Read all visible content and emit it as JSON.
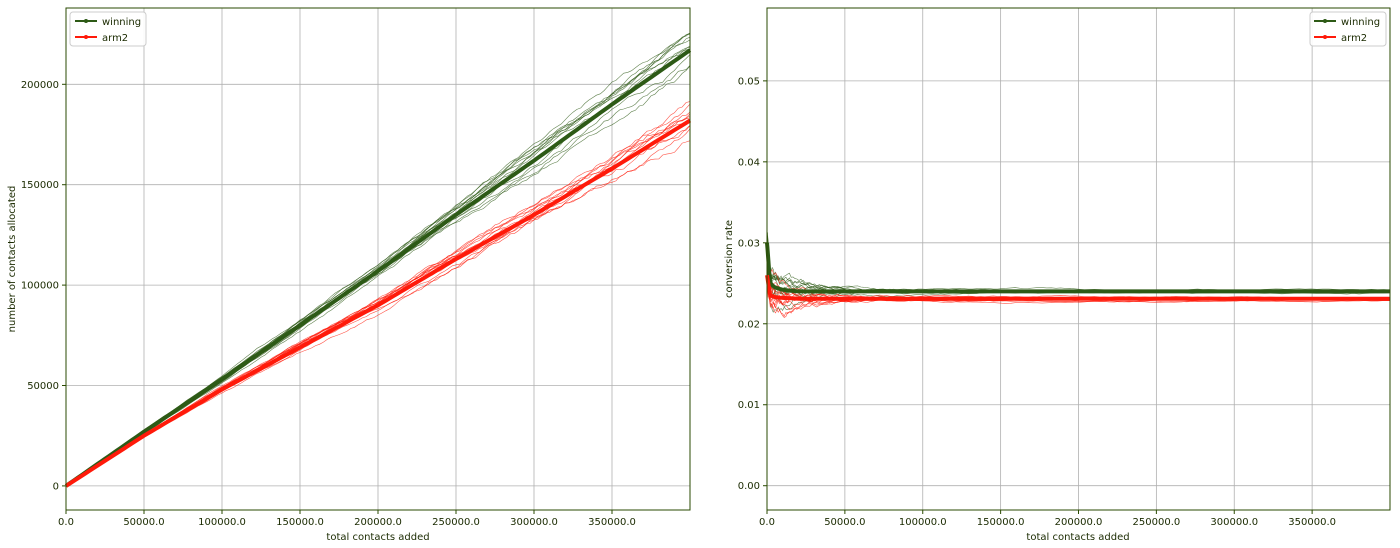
{
  "colors": {
    "winning": "#2d5a16",
    "arm2": "#ff1a0a",
    "grid": "#b0b0b0",
    "axis": "#2a4a00"
  },
  "chart_data": [
    {
      "type": "line",
      "title": "",
      "xlabel": "total contacts added",
      "ylabel": "number of contacts allocated",
      "xlim": [
        0,
        400000
      ],
      "ylim": [
        -12000,
        238000
      ],
      "xticks": [
        0,
        50000,
        100000,
        150000,
        200000,
        250000,
        300000,
        350000
      ],
      "xtick_labels": [
        "0.0",
        "50000.0",
        "100000.0",
        "150000.0",
        "200000.0",
        "250000.0",
        "300000.0",
        "350000.0"
      ],
      "yticks": [
        0,
        50000,
        100000,
        150000,
        200000
      ],
      "ytick_labels": [
        "0",
        "50000",
        "100000",
        "150000",
        "200000"
      ],
      "grid": true,
      "legend": "top-left",
      "x": [
        0,
        50000,
        100000,
        150000,
        200000,
        250000,
        300000,
        350000,
        400000
      ],
      "series": [
        {
          "name": "winning",
          "color": "winning",
          "values": [
            0,
            27000,
            53000,
            80000,
            107000,
            135000,
            162000,
            190000,
            217000
          ],
          "spread": 9000
        },
        {
          "name": "arm2",
          "color": "arm2",
          "values": [
            0,
            25000,
            48000,
            69000,
            90000,
            113000,
            135000,
            158000,
            182000
          ],
          "spread": 10000
        }
      ]
    },
    {
      "type": "line",
      "title": "",
      "xlabel": "total contacts added",
      "ylabel": "conversion rate",
      "xlim": [
        0,
        400000
      ],
      "ylim": [
        -0.003,
        0.059
      ],
      "xticks": [
        0,
        50000,
        100000,
        150000,
        200000,
        250000,
        300000,
        350000
      ],
      "xtick_labels": [
        "0.0",
        "50000.0",
        "100000.0",
        "150000.0",
        "200000.0",
        "250000.0",
        "300000.0",
        "350000.0"
      ],
      "yticks": [
        0.0,
        0.01,
        0.02,
        0.03,
        0.04,
        0.05
      ],
      "ytick_labels": [
        "0.00",
        "0.01",
        "0.02",
        "0.03",
        "0.04",
        "0.05"
      ],
      "grid": true,
      "legend": "top-right",
      "x": [
        0,
        2000,
        5000,
        10000,
        20000,
        50000,
        100000,
        200000,
        300000,
        400000
      ],
      "series": [
        {
          "name": "winning",
          "color": "winning",
          "values": [
            0.03,
            0.025,
            0.0245,
            0.0242,
            0.024,
            0.024,
            0.024,
            0.024,
            0.024,
            0.024
          ],
          "spread": 0.003
        },
        {
          "name": "arm2",
          "color": "arm2",
          "values": [
            0.026,
            0.0235,
            0.0233,
            0.0232,
            0.0231,
            0.0231,
            0.0231,
            0.0231,
            0.0231,
            0.0231
          ],
          "spread": 0.003
        }
      ]
    }
  ]
}
